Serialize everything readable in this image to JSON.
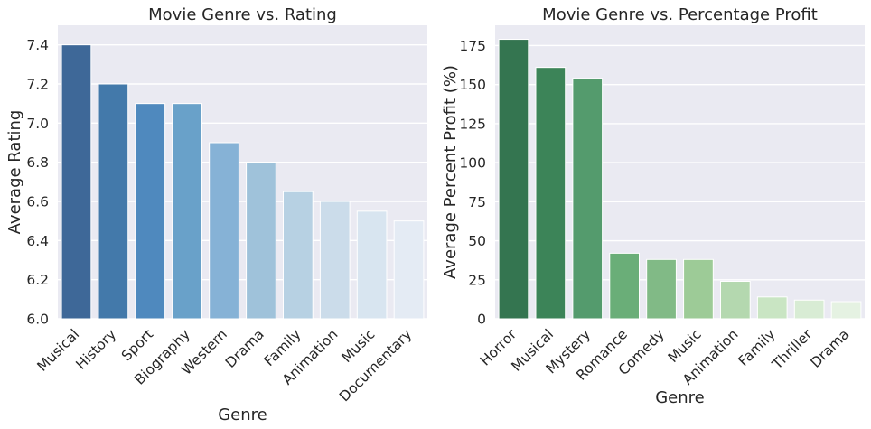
{
  "chart_data": [
    {
      "type": "bar",
      "title": "Movie Genre vs. Rating",
      "xlabel": "Genre",
      "ylabel": "Average Rating",
      "categories": [
        "Musical",
        "History",
        "Sport",
        "Biography",
        "Western",
        "Drama",
        "Family",
        "Animation",
        "Music",
        "Documentary"
      ],
      "values": [
        7.4,
        7.2,
        7.1,
        7.1,
        6.9,
        6.8,
        6.65,
        6.6,
        6.55,
        6.5
      ],
      "ylim": [
        6.0,
        7.5
      ],
      "yticks": [
        "6.0",
        "6.2",
        "6.4",
        "6.6",
        "6.8",
        "7.0",
        "7.2",
        "7.4"
      ],
      "colors": [
        "#3e6898",
        "#4379aa",
        "#4f89be",
        "#69a1c9",
        "#86b2d6",
        "#9fc2da",
        "#b7d1e3",
        "#cbdcea",
        "#d8e5f0",
        "#e4ebf4"
      ],
      "grid": true,
      "palette": "Blues_r"
    },
    {
      "type": "bar",
      "title": "Movie Genre vs. Percentage Profit",
      "xlabel": "Genre",
      "ylabel": "Average Percent Profit (%)",
      "categories": [
        "Horror",
        "Musical",
        "Mystery",
        "Romance",
        "Comedy",
        "Music",
        "Animation",
        "Family",
        "Thriller",
        "Drama"
      ],
      "values": [
        179,
        161,
        154,
        42,
        38,
        38,
        24,
        14,
        12,
        11
      ],
      "ylim": [
        0,
        188
      ],
      "yticks": [
        "0",
        "25",
        "50",
        "75",
        "100",
        "125",
        "150",
        "175"
      ],
      "colors": [
        "#347550",
        "#3c8458",
        "#549b6d",
        "#6aae78",
        "#81ba86",
        "#9dcb97",
        "#b4d8af",
        "#c9e5c3",
        "#d8ecd4",
        "#e5f2e2"
      ],
      "grid": true,
      "palette": "Greens_r"
    }
  ]
}
